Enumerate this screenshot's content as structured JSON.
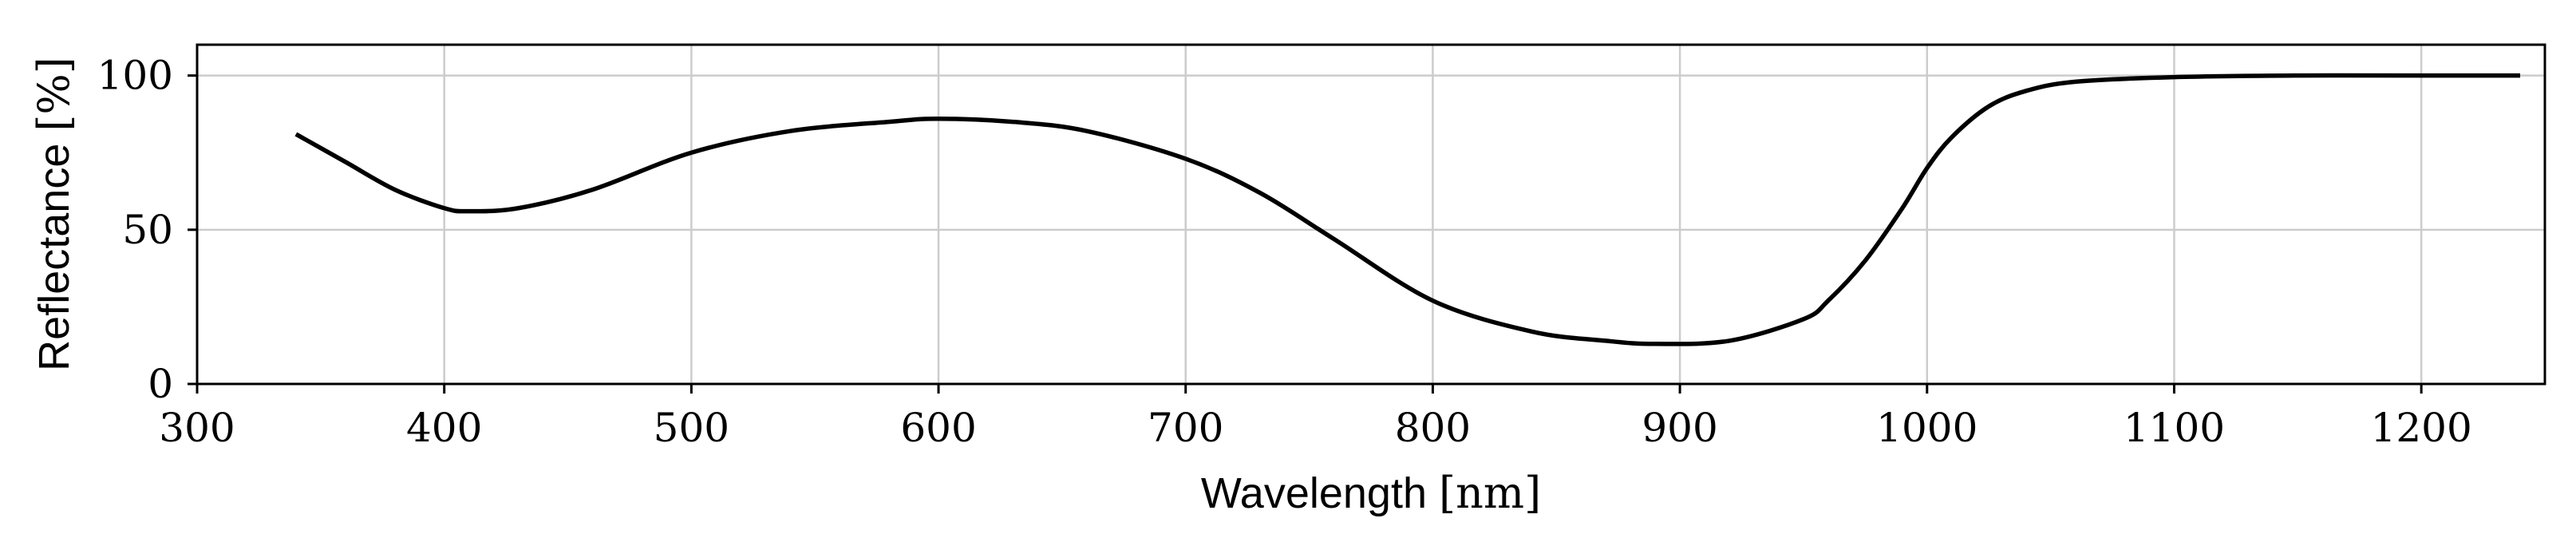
{
  "chart_data": {
    "type": "line",
    "title": "",
    "xlabel": "Wavelength",
    "xunit": "[nm]",
    "ylabel": "Reflectance",
    "yunit": "[%]",
    "xlim": [
      300,
      1250
    ],
    "ylim": [
      0,
      110
    ],
    "xticks": [
      300,
      400,
      500,
      600,
      700,
      800,
      900,
      1000,
      1100,
      1200
    ],
    "yticks": [
      0,
      50,
      100
    ],
    "grid": true,
    "line_color": "#000000",
    "grid_color": "#cccccc",
    "series": [
      {
        "name": "Reflectance",
        "x": [
          340,
          360,
          380,
          400,
          410,
          430,
          460,
          500,
          540,
          580,
          600,
          630,
          660,
          700,
          730,
          760,
          800,
          840,
          870,
          890,
          920,
          950,
          960,
          975,
          990,
          1000,
          1010,
          1025,
          1040,
          1060,
          1100,
          1150,
          1200,
          1240
        ],
        "y": [
          81,
          72,
          63,
          57,
          56,
          57,
          63,
          75,
          82,
          85,
          86,
          85,
          82,
          73,
          62,
          47,
          27,
          17,
          14,
          13,
          14,
          21,
          27,
          40,
          57,
          70,
          80,
          90,
          95,
          98,
          99.5,
          100,
          100,
          100
        ]
      }
    ]
  }
}
